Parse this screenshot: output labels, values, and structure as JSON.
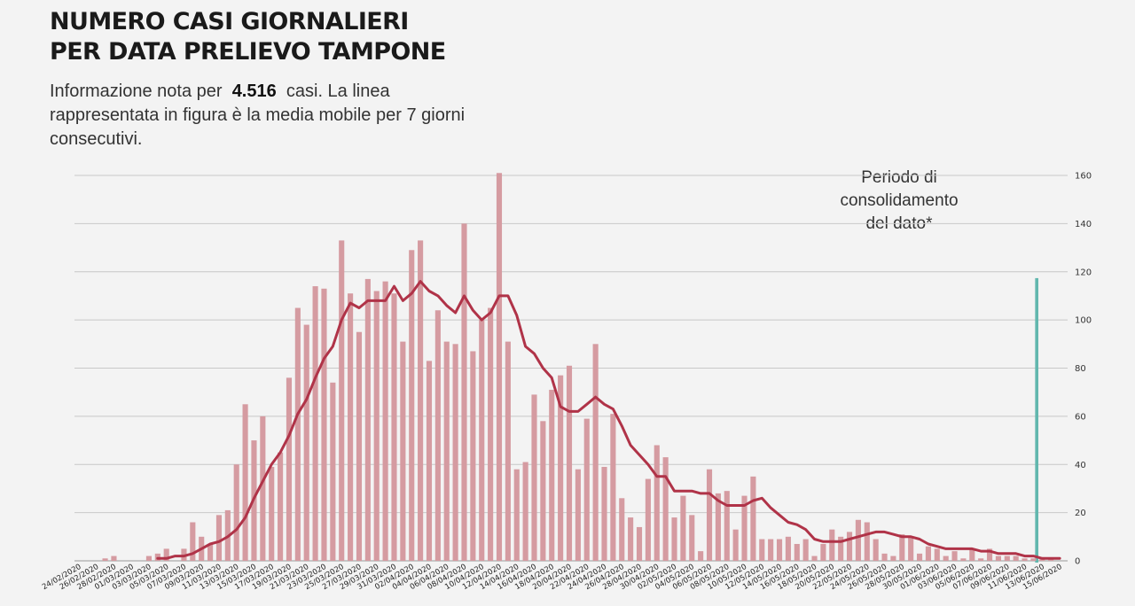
{
  "header": {
    "title_line1": "NUMERO CASI GIORNALIERI",
    "title_line2": "PER DATA PRELIEVO TAMPONE",
    "subtitle_prefix": "Informazione nota per",
    "subtitle_count": "4.516",
    "subtitle_suffix": "casi. La linea rappresentata in figura è la media mobile per 7 giorni consecutivi."
  },
  "annotation": {
    "text": "Periodo di consolidamento del dato*"
  },
  "colors": {
    "bar": "#d59ba1",
    "line": "#b03348",
    "grid": "#c8c8c8",
    "highlight_fill": "#e9e9e9",
    "highlight_border": "#62b7ae"
  },
  "chart_data": {
    "type": "bar",
    "title": "NUMERO CASI GIORNALIERI PER DATA PRELIEVO TAMPONE",
    "xlabel": "",
    "ylabel": "",
    "ylim": [
      0,
      160
    ],
    "yticks": [
      0,
      20,
      40,
      60,
      80,
      100,
      120,
      140,
      160
    ],
    "grid": true,
    "legend": "none",
    "x_tick_labels": [
      "24/02/2020",
      "26/02/2020",
      "28/02/2020",
      "01/03/2020",
      "03/03/2020",
      "05/03/2020",
      "07/03/2020",
      "09/03/2020",
      "11/03/2020",
      "13/03/2020",
      "15/03/2020",
      "17/03/2020",
      "19/03/2020",
      "21/03/2020",
      "23/03/2020",
      "25/03/2020",
      "27/03/2020",
      "29/03/2020",
      "31/03/2020",
      "02/04/2020",
      "04/04/2020",
      "06/04/2020",
      "08/04/2020",
      "10/04/2020",
      "12/04/2020",
      "14/04/2020",
      "16/04/2020",
      "18/04/2020",
      "20/04/2020",
      "22/04/2020",
      "24/04/2020",
      "26/04/2020",
      "28/04/2020",
      "30/04/2020",
      "02/05/2020",
      "04/05/2020",
      "06/05/2020",
      "08/05/2020",
      "10/05/2020",
      "12/05/2020",
      "14/05/2020",
      "16/05/2020",
      "18/05/2020",
      "20/05/2020",
      "22/05/2020",
      "24/05/2020",
      "26/05/2020",
      "28/05/2020",
      "30/05/2020",
      "01/06/2020",
      "03/06/2020",
      "05/06/2020",
      "07/06/2020",
      "09/06/2020",
      "11/06/2020",
      "13/06/2020",
      "15/06/2020"
    ],
    "consolidation_period": [
      "13/06/2020",
      "15/06/2020"
    ],
    "series": [
      {
        "name": "Casi giornalieri",
        "kind": "bar",
        "values": [
          0,
          0,
          0,
          1,
          2,
          0,
          0,
          0,
          2,
          3,
          5,
          0,
          5,
          16,
          10,
          7,
          19,
          21,
          40,
          65,
          50,
          60,
          39,
          45,
          76,
          105,
          98,
          114,
          113,
          74,
          133,
          111,
          95,
          117,
          112,
          116,
          111,
          91,
          129,
          133,
          83,
          104,
          91,
          90,
          140,
          87,
          100,
          105,
          161,
          91,
          38,
          41,
          69,
          58,
          71,
          77,
          81,
          38,
          59,
          90,
          39,
          61,
          26,
          18,
          14,
          34,
          48,
          43,
          18,
          27,
          19,
          4,
          38,
          28,
          29,
          13,
          27,
          35,
          9,
          9,
          9,
          10,
          7,
          9,
          2,
          7,
          13,
          10,
          12,
          17,
          16,
          9,
          3,
          2,
          11,
          10,
          3,
          6,
          5,
          2,
          4,
          1,
          5,
          1,
          5,
          2,
          2,
          2,
          1,
          1,
          1,
          1,
          0
        ]
      },
      {
        "name": "Media mobile 7 giorni",
        "kind": "line",
        "values": [
          null,
          null,
          null,
          null,
          null,
          null,
          null,
          null,
          null,
          1,
          1,
          2,
          2,
          3,
          5,
          7,
          8,
          10,
          13,
          18,
          26,
          33,
          40,
          45,
          52,
          61,
          67,
          76,
          84,
          89,
          100,
          107,
          105,
          108,
          108,
          108,
          114,
          108,
          111,
          116,
          112,
          110,
          106,
          103,
          110,
          104,
          100,
          103,
          110,
          110,
          102,
          89,
          86,
          80,
          76,
          64,
          62,
          62,
          65,
          68,
          65,
          63,
          56,
          48,
          44,
          40,
          35,
          35,
          29,
          29,
          29,
          28,
          28,
          25,
          23,
          23,
          23,
          25,
          26,
          22,
          19,
          16,
          15,
          13,
          9,
          8,
          8,
          8,
          9,
          10,
          11,
          12,
          12,
          11,
          10,
          10,
          9,
          7,
          6,
          5,
          5,
          5,
          5,
          4,
          4,
          3,
          3,
          3,
          2,
          2,
          1,
          1,
          1
        ]
      }
    ]
  }
}
